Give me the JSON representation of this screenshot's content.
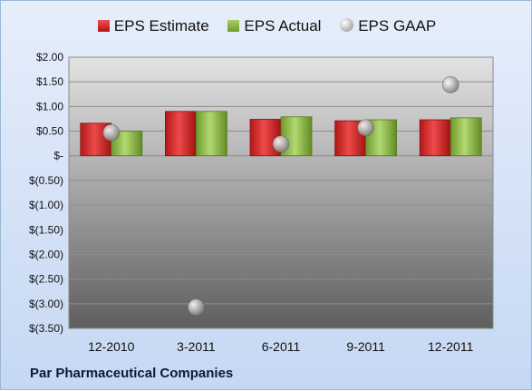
{
  "chart_data": {
    "type": "bar",
    "categories": [
      "12-2010",
      "3-2011",
      "6-2011",
      "9-2011",
      "12-2011"
    ],
    "series": [
      {
        "name": "EPS Estimate",
        "kind": "bar",
        "color": "#c62020",
        "values": [
          0.66,
          0.9,
          0.74,
          0.71,
          0.73
        ]
      },
      {
        "name": "EPS Actual",
        "kind": "bar",
        "color": "#8ab44a",
        "values": [
          0.5,
          0.9,
          0.79,
          0.73,
          0.77
        ]
      },
      {
        "name": "EPS GAAP",
        "kind": "bubble",
        "color": "#b0b0b0",
        "values": [
          0.47,
          -3.07,
          0.24,
          0.57,
          1.44
        ]
      }
    ],
    "y_ticks": [
      "$2.00",
      "$1.50",
      "$1.00",
      "$0.50",
      "$-",
      "$(0.50)",
      "$(1.00)",
      "$(1.50)",
      "$(2.00)",
      "$(2.50)",
      "$(3.00)",
      "$(3.50)"
    ],
    "ylim": [
      -3.5,
      2.0
    ],
    "legend_placement": "top-center",
    "grid": true
  },
  "footer": {
    "company": "Par Pharmaceutical Companies"
  }
}
